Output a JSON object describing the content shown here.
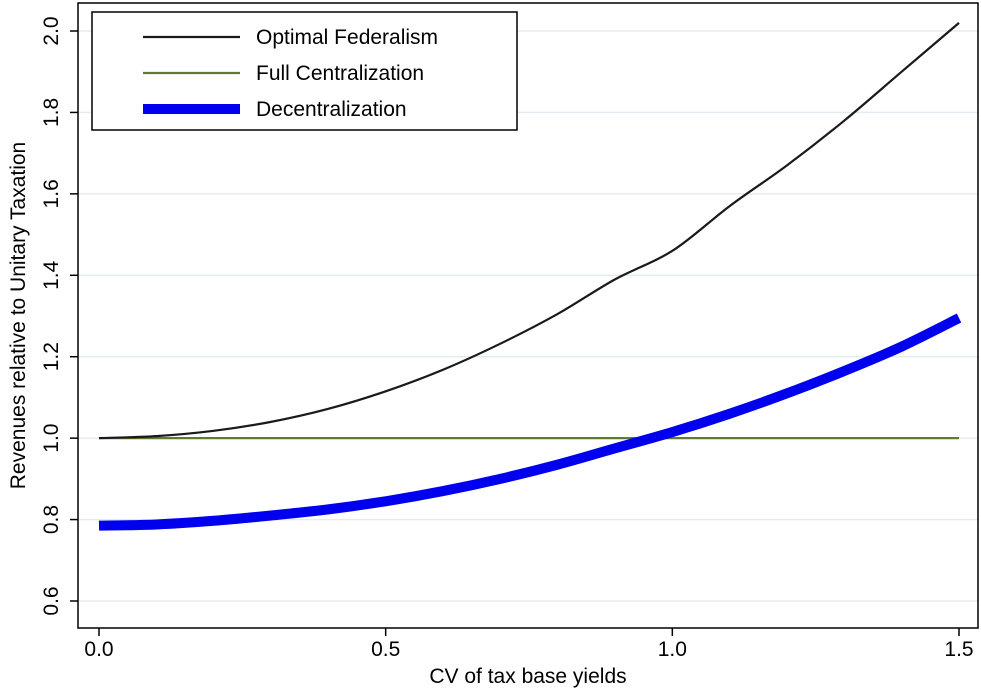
{
  "chart_data": {
    "type": "line",
    "title": "",
    "xlabel": "CV of tax base yields",
    "ylabel": "Revenues relative to Unitary Taxation",
    "xlim": [
      0,
      1.5
    ],
    "ylim": [
      0.6,
      2.0
    ],
    "x_ticks": [
      {
        "value": 0.0,
        "label": "0.0"
      },
      {
        "value": 0.5,
        "label": "0.5"
      },
      {
        "value": 1.0,
        "label": "1.0"
      },
      {
        "value": 1.5,
        "label": "1.5"
      }
    ],
    "y_ticks": [
      {
        "value": 0.6,
        "label": "0.6"
      },
      {
        "value": 0.8,
        "label": "0.8"
      },
      {
        "value": 1.0,
        "label": "1.0"
      },
      {
        "value": 1.2,
        "label": "1.2"
      },
      {
        "value": 1.4,
        "label": "1.4"
      },
      {
        "value": 1.6,
        "label": "1.6"
      },
      {
        "value": 1.8,
        "label": "1.8"
      },
      {
        "value": 2.0,
        "label": "2.0"
      }
    ],
    "grid": "horizontal",
    "legend_position": "top-left",
    "x": [
      0.0,
      0.1,
      0.2,
      0.3,
      0.4,
      0.5,
      0.6,
      0.7,
      0.8,
      0.9,
      1.0,
      1.1,
      1.2,
      1.3,
      1.4,
      1.5
    ],
    "series": [
      {
        "name": "Optimal Federalism",
        "color": "#1a1a1a",
        "style": "thin",
        "values": [
          1.0,
          1.005,
          1.018,
          1.04,
          1.072,
          1.115,
          1.168,
          1.232,
          1.305,
          1.39,
          1.46,
          1.57,
          1.67,
          1.78,
          1.9,
          2.02
        ]
      },
      {
        "name": "Full Centralization",
        "color": "#5f7a35",
        "style": "thin",
        "values": [
          1.0,
          1.0,
          1.0,
          1.0,
          1.0,
          1.0,
          1.0,
          1.0,
          1.0,
          1.0,
          1.0,
          1.0,
          1.0,
          1.0,
          1.0,
          1.0
        ]
      },
      {
        "name": "Decentralization",
        "color": "#0000ee",
        "style": "thick",
        "values": [
          0.785,
          0.788,
          0.797,
          0.81,
          0.825,
          0.845,
          0.87,
          0.9,
          0.935,
          0.975,
          1.015,
          1.06,
          1.11,
          1.165,
          1.225,
          1.295
        ]
      }
    ]
  }
}
